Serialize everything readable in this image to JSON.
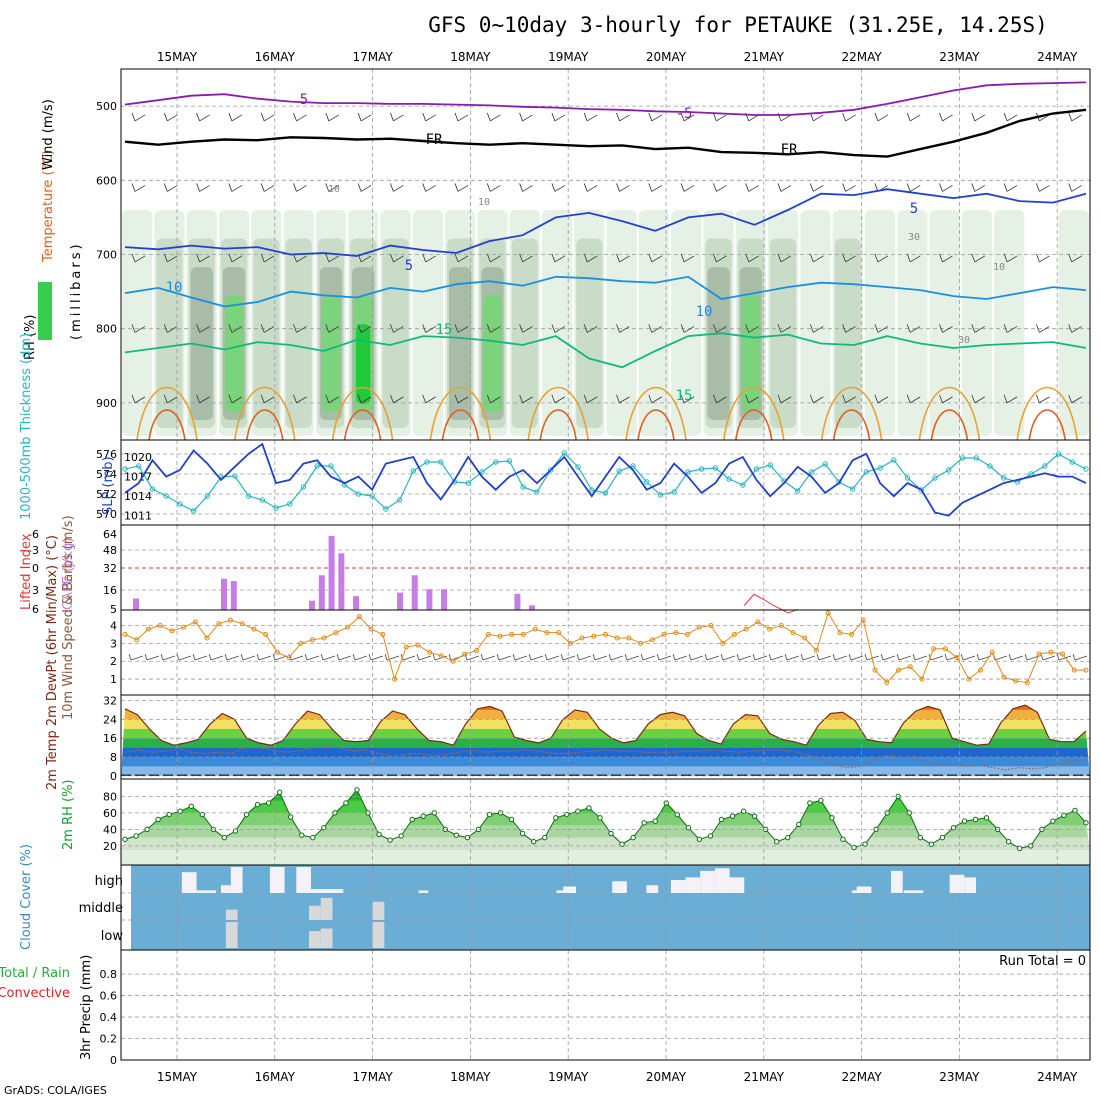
{
  "title": "GFS 0~10day 3-hourly for PETAUKE (31.25E, 14.25S)",
  "footer": "GrADS: COLA/IGES",
  "days": [
    "15MAY",
    "16MAY",
    "17MAY",
    "18MAY",
    "19MAY",
    "20MAY",
    "21MAY",
    "22MAY",
    "23MAY",
    "24MAY"
  ],
  "colors": {
    "rh": "#22c93a",
    "wind": "#000000",
    "temperature": "#c03a9a",
    "cape": "#c77de8",
    "lifted": "#e03535",
    "slp": "#2040c8",
    "thickness": "#27b5c0",
    "wind10": "#e08a1a",
    "temp2m": "#7a2a10",
    "dewpt": "#9a6a5a",
    "rh2m": "#18a028",
    "cloud_bg": "#6aaed6",
    "cloud_bar": "#f5f2f7",
    "cloud_low": "#d8d8d8",
    "precip_total": "#22b030",
    "precip_conv": "#e02020"
  },
  "chart_data": [
    {
      "type": "heatmap",
      "panel": "upper_air_cross_section",
      "ylabel": "(millibars)",
      "legend_labels": {
        "rh": "RH (%)",
        "temperature": "Temperature (°C)",
        "wind": "Wind (m/s)"
      },
      "ylim": [
        950,
        450
      ],
      "yticks": [
        500,
        600,
        700,
        800,
        900
      ],
      "contour_labels": [
        "5",
        "-5",
        "FR",
        "FR",
        "10",
        "10",
        "5",
        "5",
        "10",
        "10",
        "15",
        "15",
        "30",
        "30",
        "10"
      ],
      "isotherms": [
        {
          "name": "-5",
          "color": "#8a1ab0",
          "levels_mb": [
            498,
            492,
            486,
            484,
            490,
            494,
            496,
            496,
            497,
            497,
            498,
            499,
            501,
            502,
            504,
            505,
            507,
            508,
            510,
            512,
            512,
            509,
            505,
            497,
            488,
            479,
            472,
            470,
            469,
            468
          ]
        },
        {
          "name": "FR",
          "color": "#000000",
          "levels_mb": [
            548,
            552,
            548,
            545,
            546,
            542,
            543,
            545,
            544,
            547,
            550,
            552,
            550,
            552,
            554,
            553,
            558,
            556,
            562,
            563,
            565,
            562,
            566,
            568,
            558,
            548,
            536,
            520,
            510,
            505
          ]
        },
        {
          "name": "5",
          "color": "#2040d0",
          "levels_mb": [
            690,
            693,
            688,
            692,
            690,
            700,
            698,
            702,
            688,
            694,
            698,
            682,
            674,
            650,
            644,
            655,
            668,
            650,
            645,
            660,
            640,
            618,
            620,
            612,
            618,
            624,
            618,
            628,
            630,
            618
          ]
        },
        {
          "name": "10",
          "color": "#1a90e0",
          "levels_mb": [
            752,
            745,
            758,
            770,
            764,
            750,
            755,
            758,
            745,
            750,
            740,
            736,
            742,
            730,
            732,
            736,
            738,
            730,
            760,
            752,
            744,
            738,
            740,
            744,
            748,
            756,
            760,
            752,
            744,
            748
          ]
        },
        {
          "name": "15",
          "color": "#10b880",
          "levels_mb": [
            832,
            826,
            820,
            828,
            818,
            822,
            830,
            815,
            822,
            810,
            812,
            816,
            822,
            810,
            840,
            852,
            830,
            810,
            806,
            812,
            808,
            820,
            822,
            810,
            820,
            826,
            822,
            820,
            818,
            826
          ]
        }
      ],
      "rh_columns_percent": [
        40,
        55,
        80,
        90,
        60,
        55,
        85,
        95,
        70,
        50,
        80,
        90,
        60,
        45,
        55,
        40,
        35,
        50,
        75,
        85,
        60,
        40,
        55,
        40,
        30,
        35,
        30,
        30,
        25,
        40
      ]
    },
    {
      "type": "line",
      "panel": "slp_thickness",
      "series": [
        {
          "name": "SLP (mb)",
          "axis": "right",
          "values": [
            1014.5,
            1016,
            1019.5,
            1017,
            1018,
            1021,
            1019,
            1016.5,
            1018.5,
            1020.5,
            1022,
            1016,
            1016.5,
            1019,
            1019.5,
            1017,
            1016,
            1017,
            1015,
            1019,
            1019.5,
            1020,
            1016,
            1013.5,
            1016.5,
            1020,
            1017,
            1015,
            1017,
            1018,
            1016,
            1018,
            1020,
            1017,
            1014,
            1017,
            1020,
            1018,
            1015,
            1016,
            1019,
            1017,
            1014.5,
            1016,
            1019,
            1020,
            1016.5,
            1014,
            1016,
            1018.5,
            1017,
            1014.5,
            1016,
            1019.5,
            1020.5,
            1016,
            1014,
            1016,
            1015,
            1011.5,
            1011,
            1013,
            1014,
            1015,
            1016,
            1016.5,
            1017,
            1017.5,
            1017,
            1017,
            1016
          ]
        },
        {
          "name": "1000-500mb Thickness (dm)",
          "axis": "left",
          "values": [
            574.5,
            574.8,
            572.5,
            571.8,
            571,
            570.3,
            571.8,
            573.7,
            573.8,
            571.8,
            571.4,
            570.6,
            571,
            572.7,
            574.8,
            574.8,
            572.9,
            572,
            571.8,
            570.5,
            571.4,
            574.3,
            575.2,
            575.2,
            573.2,
            573.1,
            574.2,
            575.2,
            575.3,
            572.7,
            572.2,
            574.4,
            576.1,
            574.7,
            572.4,
            572.1,
            574.3,
            574.8,
            573.2,
            571.9,
            572.2,
            574.2,
            574.5,
            574.6,
            573.5,
            572.9,
            574.5,
            574.9,
            573.3,
            572.3,
            574.2,
            575,
            573.2,
            572.5,
            574.2,
            574.6,
            575.4,
            573.6,
            572.4,
            573.6,
            574.4,
            575.6,
            575.6,
            574.8,
            573.6,
            573.2,
            574,
            574.8,
            576,
            575.2,
            574.5
          ]
        }
      ],
      "yticks_left": [
        570,
        572,
        574,
        576
      ],
      "yticks_right": [
        1011,
        1014,
        1017,
        1020
      ]
    },
    {
      "type": "bar",
      "panel": "cape_lifted_index",
      "ylabel_left": "Lifted Index",
      "ylabel_right": "CAPE (J/kg)",
      "yticks_left": [
        "-6",
        "-3",
        "0",
        "3",
        "6"
      ],
      "yticks_right": [
        "64",
        "48",
        "32",
        "16",
        "5"
      ],
      "cape_bars": [
        {
          "x": 0.05,
          "v": 10
        },
        {
          "x": 0.95,
          "v": 27
        },
        {
          "x": 1.05,
          "v": 25
        },
        {
          "x": 1.85,
          "v": 8
        },
        {
          "x": 1.95,
          "v": 30
        },
        {
          "x": 2.05,
          "v": 64
        },
        {
          "x": 2.15,
          "v": 49
        },
        {
          "x": 2.3,
          "v": 12
        },
        {
          "x": 2.75,
          "v": 15
        },
        {
          "x": 2.9,
          "v": 30
        },
        {
          "x": 3.05,
          "v": 18
        },
        {
          "x": 3.2,
          "v": 18
        },
        {
          "x": 3.95,
          "v": 14
        },
        {
          "x": 4.1,
          "v": 4
        }
      ],
      "lifted_line": [
        {
          "x": 6.3,
          "v": 5
        },
        {
          "x": 6.4,
          "v": 3.5
        },
        {
          "x": 6.5,
          "v": 4.2
        },
        {
          "x": 6.6,
          "v": 5
        },
        {
          "x": 6.75,
          "v": 6
        },
        {
          "x": 6.85,
          "v": 5.5
        }
      ]
    },
    {
      "type": "line",
      "panel": "wind10m",
      "ylabel": "10m Wind Speed & Barbs (m/s)",
      "yticks": [
        1,
        2,
        3,
        4
      ],
      "series": [
        {
          "name": "10m Wind Speed",
          "values": [
            3.5,
            3.2,
            3.8,
            4.0,
            3.7,
            3.9,
            4.2,
            3.3,
            4.1,
            4.3,
            4.1,
            3.8,
            3.5,
            2.5,
            2.2,
            3.0,
            3.2,
            3.3,
            3.6,
            3.9,
            4.5,
            3.8,
            3.5,
            1.0,
            2.8,
            2.9,
            2.5,
            2.3,
            2.0,
            2.4,
            2.6,
            3.5,
            3.4,
            3.5,
            3.5,
            3.8,
            3.6,
            3.6,
            3.0,
            3.3,
            3.4,
            3.5,
            3.3,
            3.3,
            3.0,
            3.2,
            3.5,
            3.6,
            3.5,
            3.9,
            4.0,
            3.0,
            3.5,
            3.8,
            4.2,
            3.8,
            4.0,
            3.6,
            3.3,
            2.6,
            4.7,
            3.6,
            3.5,
            4.3,
            1.5,
            0.8,
            1.5,
            1.7,
            1.0,
            2.7,
            2.7,
            2.2,
            1.0,
            1.5,
            2.5,
            1.1,
            0.9,
            0.8,
            2.4,
            2.5,
            2.4,
            1.5,
            1.5
          ]
        }
      ]
    },
    {
      "type": "area",
      "panel": "temp2m",
      "ylabel": "2m Temp 2m DewPt (6hr Min/Max) (°C)",
      "yticks": [
        0,
        8,
        16,
        24,
        32
      ],
      "series": [
        {
          "name": "2m Temp",
          "values": [
            28.5,
            26,
            20,
            15,
            13,
            14,
            15.5,
            22,
            26.5,
            24,
            16,
            14,
            13,
            15,
            22,
            27.5,
            26,
            20,
            15,
            14.5,
            15,
            23,
            27.5,
            26,
            20,
            15,
            14.5,
            13,
            22,
            28.5,
            29.5,
            27.5,
            16.5,
            15,
            14,
            16,
            24,
            28,
            27,
            20,
            16,
            14,
            15,
            22,
            26,
            27,
            25.5,
            18,
            15,
            13.5,
            22,
            26,
            25.5,
            18,
            15.5,
            14.5,
            13,
            21.5,
            26.5,
            27,
            23.5,
            15.5,
            14.5,
            14,
            22.5,
            27.5,
            29.5,
            28,
            16,
            14.5,
            13,
            13.5,
            22.5,
            28.5,
            30,
            27,
            15.5,
            14.5,
            14.5,
            19
          ]
        },
        {
          "name": "2m DewPt",
          "values": [
            10,
            11,
            10,
            10.5,
            11.5,
            10,
            9.5,
            10,
            9.5,
            12,
            12,
            11,
            10,
            10.5,
            12,
            12.5,
            12,
            10.5,
            11,
            9.5,
            8.5,
            9,
            9.5,
            8.5,
            9,
            10,
            11,
            10,
            10.5,
            10.5,
            11,
            10.5,
            9.5,
            9.5,
            10,
            10.5,
            11,
            10.5,
            10.5,
            10,
            10,
            10,
            10.5,
            10.5,
            11,
            10.5,
            10,
            10.5,
            11,
            11,
            10.5,
            9,
            7.5,
            5,
            3.5,
            4,
            7,
            8.5,
            8,
            7.5,
            6,
            4.5,
            4.5,
            4,
            4.5,
            3.5,
            2.5,
            3.5,
            3,
            3.5,
            5.5,
            6,
            7
          ]
        }
      ]
    },
    {
      "type": "area",
      "panel": "rh2m",
      "ylabel": "2m RH (%)",
      "yticks": [
        20,
        40,
        60,
        80
      ],
      "series": [
        {
          "name": "2m RH",
          "values": [
            28,
            32,
            40,
            52,
            58,
            62,
            68,
            58,
            40,
            30,
            38,
            58,
            70,
            72,
            85,
            55,
            33,
            30,
            42,
            60,
            72,
            88,
            60,
            34,
            27,
            32,
            52,
            56,
            60,
            40,
            33,
            30,
            40,
            58,
            60,
            52,
            35,
            25,
            30,
            54,
            58,
            62,
            66,
            54,
            35,
            22,
            30,
            48,
            50,
            72,
            58,
            42,
            28,
            32,
            52,
            56,
            62,
            56,
            40,
            25,
            30,
            46,
            72,
            75,
            54,
            28,
            18,
            22,
            40,
            60,
            80,
            60,
            30,
            22,
            30,
            42,
            50,
            52,
            54,
            40,
            25,
            17,
            20,
            40,
            50,
            57,
            63,
            48
          ]
        }
      ]
    },
    {
      "type": "bar",
      "panel": "cloud_cover",
      "ylabel": "Cloud Cover (%)",
      "levels": [
        "high",
        "middle",
        "low"
      ],
      "high": [
        {
          "x": 0.55,
          "w": 0.15,
          "v": 0.8
        },
        {
          "x": 0.55,
          "w": 0.35,
          "v": 0.1
        },
        {
          "x": 0.95,
          "w": 0.1,
          "v": 0.3
        },
        {
          "x": 1.05,
          "w": 0.12,
          "v": 1.0
        },
        {
          "x": 1.45,
          "w": 0.15,
          "v": 1.0
        },
        {
          "x": 1.72,
          "w": 0.15,
          "v": 1.0
        },
        {
          "x": 1.85,
          "w": 0.35,
          "v": 0.15
        },
        {
          "x": 2.97,
          "w": 0.1,
          "v": 0.1
        },
        {
          "x": 4.38,
          "w": 0.15,
          "v": 0.1
        },
        {
          "x": 4.45,
          "w": 0.13,
          "v": 0.25
        },
        {
          "x": 4.95,
          "w": 0.15,
          "v": 0.45
        },
        {
          "x": 5.3,
          "w": 0.12,
          "v": 0.3
        },
        {
          "x": 5.55,
          "w": 0.15,
          "v": 0.5
        },
        {
          "x": 5.7,
          "w": 0.15,
          "v": 0.6
        },
        {
          "x": 5.85,
          "w": 0.15,
          "v": 0.85
        },
        {
          "x": 6.0,
          "w": 0.15,
          "v": 0.95
        },
        {
          "x": 6.15,
          "w": 0.15,
          "v": 0.6
        },
        {
          "x": 7.4,
          "w": 0.15,
          "v": 0.1
        },
        {
          "x": 7.45,
          "w": 0.15,
          "v": 0.25
        },
        {
          "x": 7.8,
          "w": 0.12,
          "v": 0.85
        },
        {
          "x": 7.93,
          "w": 0.2,
          "v": 0.1
        },
        {
          "x": 8.4,
          "w": 0.15,
          "v": 0.7
        },
        {
          "x": 8.55,
          "w": 0.12,
          "v": 0.6
        }
      ],
      "middle": [
        {
          "x": 1.0,
          "w": 0.12,
          "v": 0.4
        },
        {
          "x": 1.85,
          "w": 0.12,
          "v": 0.55
        },
        {
          "x": 1.97,
          "w": 0.12,
          "v": 0.85
        },
        {
          "x": 2.5,
          "w": 0.12,
          "v": 0.7
        }
      ],
      "low": [
        {
          "x": 1.0,
          "w": 0.12,
          "v": 1.0
        },
        {
          "x": 1.85,
          "w": 0.12,
          "v": 0.65
        },
        {
          "x": 1.97,
          "w": 0.12,
          "v": 0.75
        },
        {
          "x": 2.5,
          "w": 0.12,
          "v": 1.0
        }
      ]
    },
    {
      "type": "bar",
      "panel": "precip",
      "ylabel": "3hr Precip (mm)",
      "legend": [
        "Total / Rain",
        "Convective"
      ],
      "run_total": "Run Total = 0",
      "yticks": [
        "0",
        "0.2",
        "0.4",
        "0.6",
        "0.8"
      ],
      "ylim": [
        0,
        1
      ],
      "values": []
    }
  ]
}
